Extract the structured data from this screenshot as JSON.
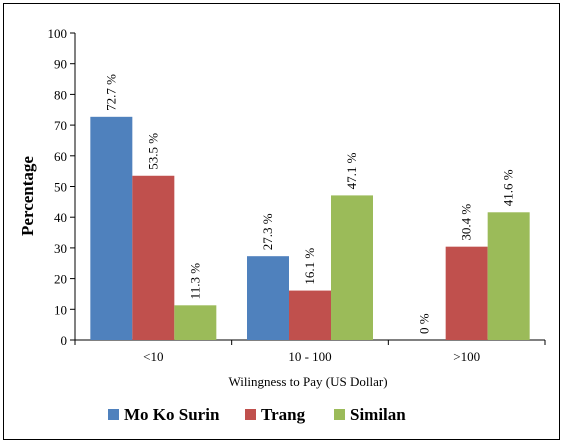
{
  "chart_data": {
    "type": "bar",
    "title": "",
    "xlabel": "Wilingness to Pay (US Dollar)",
    "ylabel": "Percentage",
    "ylim": [
      0,
      100
    ],
    "yticks": [
      "0",
      "10",
      "20",
      "30",
      "40",
      "50",
      "60",
      "70",
      "80",
      "90",
      "100"
    ],
    "categories": [
      "<10",
      "10 - 100",
      ">100"
    ],
    "series": [
      {
        "name": "Mo Ko Surin",
        "color": "#4F81BD",
        "values": [
          72.7,
          27.3,
          0
        ],
        "labels": [
          "72.7 %",
          "27.3 %",
          "0 %"
        ]
      },
      {
        "name": "Trang",
        "color": "#C0504D",
        "values": [
          53.5,
          16.1,
          30.4
        ],
        "labels": [
          "53.5 %",
          "16.1 %",
          "30.4 %"
        ]
      },
      {
        "name": "Similan",
        "color": "#9BBB59",
        "values": [
          11.3,
          47.1,
          41.6
        ],
        "labels": [
          "11.3 %",
          "47.1 %",
          "41.6 %"
        ]
      }
    ],
    "grid": false,
    "legend_position": "bottom"
  }
}
